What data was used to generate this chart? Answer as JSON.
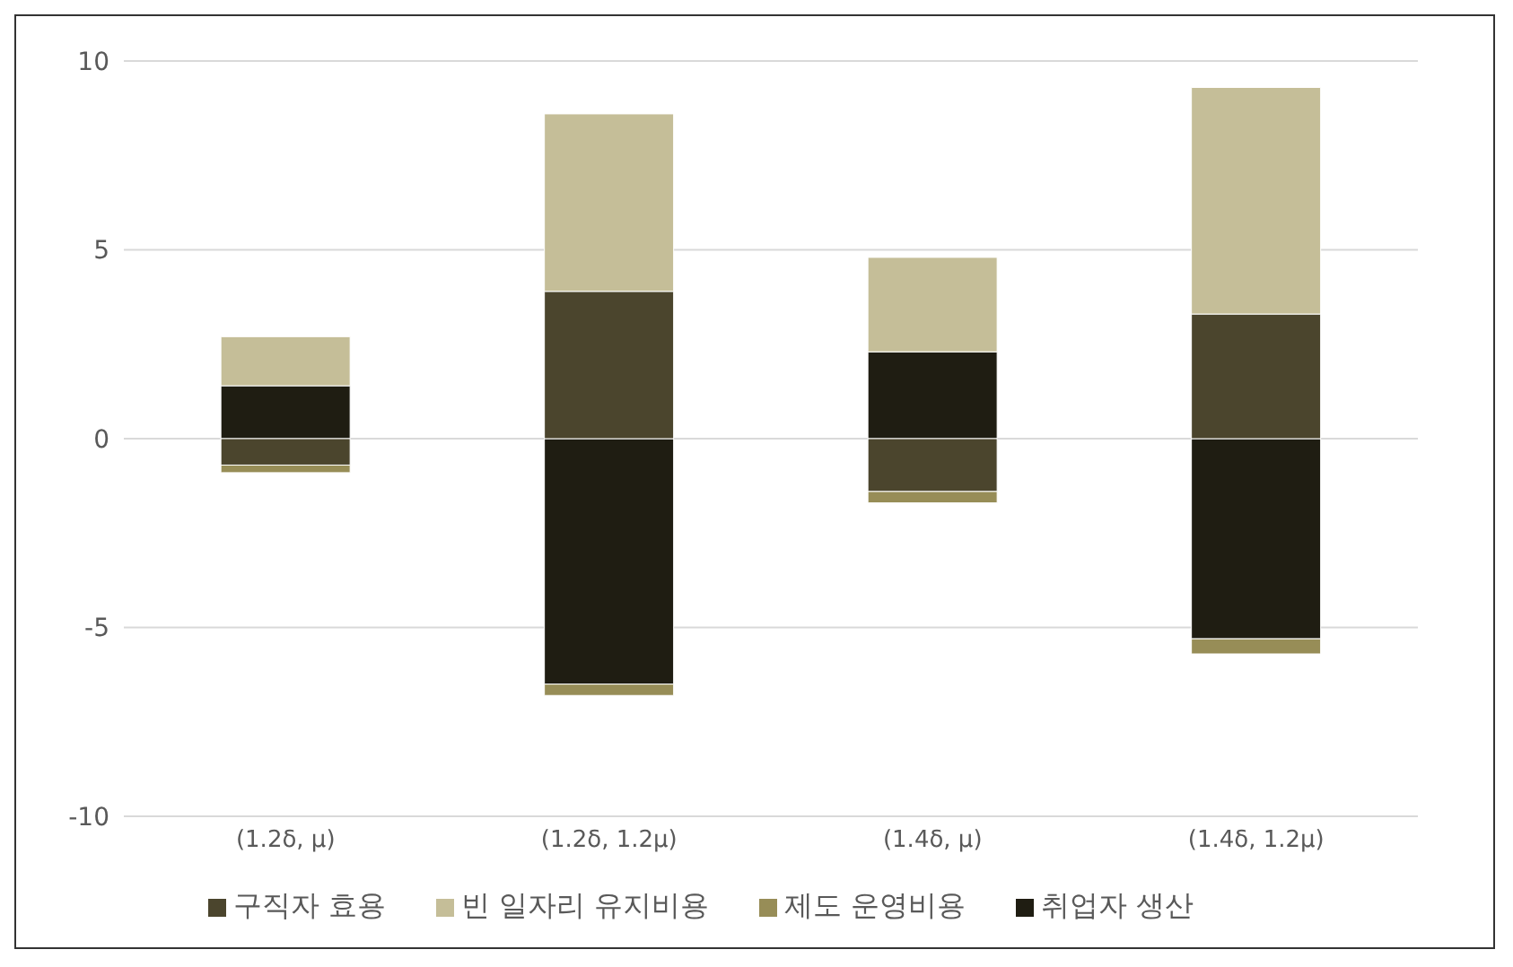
{
  "chart_data": {
    "type": "bar",
    "stacked": true,
    "categories": [
      "(1.2δ, μ)",
      "(1.2δ, 1.2μ)",
      "(1.4δ, μ)",
      "(1.4δ, 1.2μ)"
    ],
    "series": [
      {
        "name": "취업자 생산",
        "color": "#1f1d12",
        "values": [
          1.4,
          -6.5,
          2.3,
          -5.3
        ]
      },
      {
        "name": "구직자 효용",
        "color": "#4b452d",
        "values": [
          -0.7,
          3.9,
          -1.4,
          3.3
        ]
      },
      {
        "name": "제도 운영비용",
        "color": "#978d57",
        "values": [
          -0.2,
          -0.3,
          -0.3,
          -0.4
        ]
      },
      {
        "name": "빈 일자리 유지비용",
        "color": "#c5be98",
        "values": [
          1.3,
          4.7,
          2.5,
          6.0
        ]
      }
    ],
    "ylim": [
      -10,
      10
    ],
    "yticks": [
      -10,
      -5,
      0,
      5,
      10
    ],
    "grid": "y",
    "legend": "bottom"
  }
}
